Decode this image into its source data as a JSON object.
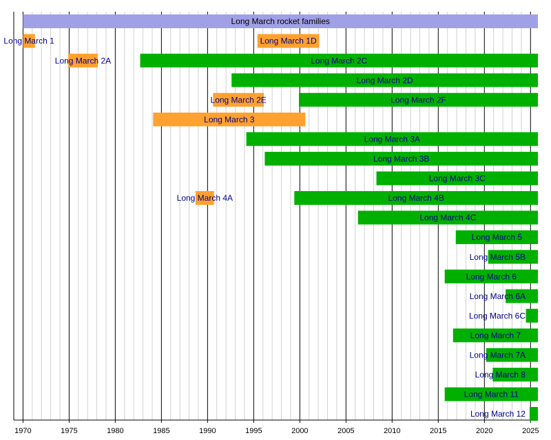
{
  "chart_data": {
    "type": "timeline",
    "title": "Long March rocket families",
    "title_span": [
      1970,
      2025.8
    ],
    "title_color": "#a0a0e6",
    "label_color": "#00008b",
    "xlim": [
      1969,
      2025.8
    ],
    "xticks": [
      1970,
      1975,
      1980,
      1985,
      1990,
      1995,
      2000,
      2005,
      2010,
      2015,
      2020,
      2025
    ],
    "minor_xticks": [
      1969,
      1971,
      1972,
      1973,
      1974,
      1976,
      1977,
      1978,
      1979,
      1981,
      1982,
      1983,
      1984,
      1986,
      1987,
      1988,
      1989,
      1991,
      1992,
      1993,
      1994,
      1996,
      1997,
      1998,
      1999,
      2001,
      2002,
      2003,
      2004,
      2006,
      2007,
      2008,
      2009,
      2011,
      2012,
      2013,
      2014,
      2016,
      2017,
      2018,
      2019,
      2021,
      2022,
      2023,
      2024
    ],
    "rows": [
      [
        {
          "name": "Long March 1",
          "start": 1970,
          "end": 1971.3,
          "color": "#ffa12e"
        },
        {
          "name": "Long March 1D",
          "start": 1995.4,
          "end": 2002.1,
          "color": "#ffa12e"
        }
      ],
      [
        {
          "name": "Long March 2A",
          "start": 1974.9,
          "end": 1978.1,
          "color": "#ffa12e"
        },
        {
          "name": "Long March 2C",
          "start": 1982.7,
          "end": 2025.8,
          "color": "#00b000"
        }
      ],
      [
        {
          "name": "Long March 2D",
          "start": 1992.6,
          "end": 2025.8,
          "color": "#00b000"
        }
      ],
      [
        {
          "name": "Long March 2E",
          "start": 1990.6,
          "end": 1996.1,
          "color": "#ffa12e"
        },
        {
          "name": "Long March 2F",
          "start": 1999.9,
          "end": 2025.8,
          "color": "#00b000"
        }
      ],
      [
        {
          "name": "Long March 3",
          "start": 1984.1,
          "end": 2000.6,
          "color": "#ffa12e"
        }
      ],
      [
        {
          "name": "Long March 3A",
          "start": 1994.2,
          "end": 2025.8,
          "color": "#00b000"
        }
      ],
      [
        {
          "name": "Long March 3B",
          "start": 1996.2,
          "end": 2025.8,
          "color": "#00b000"
        }
      ],
      [
        {
          "name": "Long March 3C",
          "start": 2008.3,
          "end": 2025.8,
          "color": "#00b000"
        }
      ],
      [
        {
          "name": "Long March 4A",
          "start": 1988.7,
          "end": 1990.7,
          "color": "#ffa12e"
        },
        {
          "name": "Long March 4B",
          "start": 1999.4,
          "end": 2025.8,
          "color": "#00b000"
        }
      ],
      [
        {
          "name": "Long March 4C",
          "start": 2006.3,
          "end": 2025.8,
          "color": "#00b000"
        }
      ],
      [
        {
          "name": "Long March 5",
          "start": 2016.9,
          "end": 2025.8,
          "color": "#00b000"
        }
      ],
      [
        {
          "name": "Long March 5B",
          "start": 2020.4,
          "end": 2025.8,
          "color": "#00b000"
        }
      ],
      [
        {
          "name": "Long March 6",
          "start": 2015.7,
          "end": 2025.8,
          "color": "#00b000"
        }
      ],
      [
        {
          "name": "Long March 6A",
          "start": 2022.3,
          "end": 2025.8,
          "color": "#00b000"
        }
      ],
      [
        {
          "name": "Long March 6C",
          "start": 2024.5,
          "end": 2025.8,
          "color": "#00b000"
        }
      ],
      [
        {
          "name": "Long March 7",
          "start": 2016.6,
          "end": 2025.8,
          "color": "#00b000"
        }
      ],
      [
        {
          "name": "Long March 7A",
          "start": 2020.2,
          "end": 2025.8,
          "color": "#00b000"
        }
      ],
      [
        {
          "name": "Long March 8",
          "start": 2020.9,
          "end": 2025.8,
          "color": "#00b000"
        }
      ],
      [
        {
          "name": "Long March 11",
          "start": 2015.7,
          "end": 2025.8,
          "color": "#00b000"
        }
      ],
      [
        {
          "name": "Long March 12",
          "start": 2024.9,
          "end": 2025.8,
          "color": "#00b000"
        }
      ]
    ]
  }
}
